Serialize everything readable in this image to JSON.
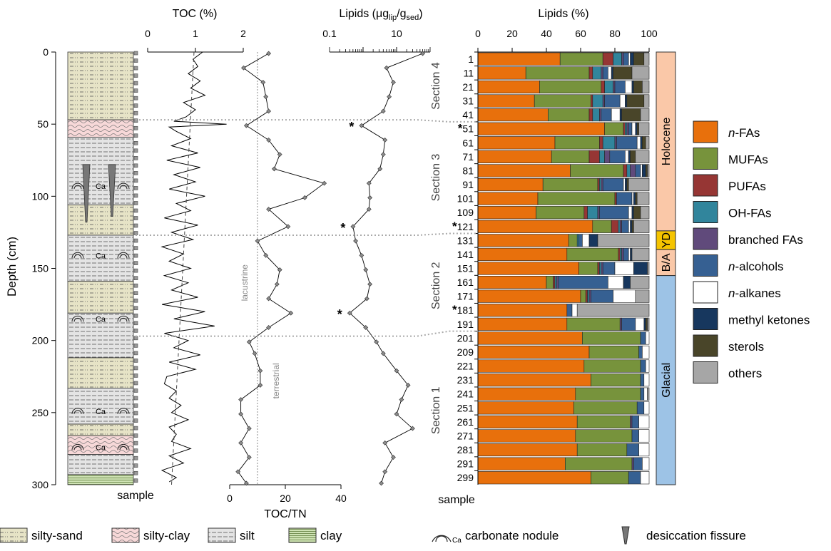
{
  "chart_data": {
    "type": "composite-stratigraphic-profile",
    "shared_y_axis": {
      "label": "Depth  (cm)",
      "range": [
        0,
        300
      ],
      "ticks": [
        0,
        50,
        100,
        150,
        200,
        250,
        300
      ],
      "inverted": true
    },
    "lithology_column": {
      "xlabel": "sample",
      "layers": [
        {
          "top": 0,
          "bottom": 47,
          "type": "silty-sand"
        },
        {
          "top": 47,
          "bottom": 59,
          "type": "silty-clay"
        },
        {
          "top": 59,
          "bottom": 106,
          "type": "silt"
        },
        {
          "top": 106,
          "bottom": 127,
          "type": "silty-sand"
        },
        {
          "top": 127,
          "bottom": 159,
          "type": "silt"
        },
        {
          "top": 159,
          "bottom": 181,
          "type": "silty-sand"
        },
        {
          "top": 181,
          "bottom": 212,
          "type": "silt"
        },
        {
          "top": 212,
          "bottom": 233,
          "type": "silty-sand"
        },
        {
          "top": 233,
          "bottom": 258,
          "type": "silt"
        },
        {
          "top": 258,
          "bottom": 266,
          "type": "silty-sand"
        },
        {
          "top": 266,
          "bottom": 279,
          "type": "silty-clay"
        },
        {
          "top": 279,
          "bottom": 293,
          "type": "silt"
        },
        {
          "top": 293,
          "bottom": 300,
          "type": "clay"
        }
      ],
      "carbonate_nodule_depths": [
        93,
        141,
        185,
        249,
        274
      ],
      "nodule_label": "Ca",
      "desiccation_fissures": [
        {
          "top": 78,
          "bottom": 118
        },
        {
          "top": 78,
          "bottom": 114
        }
      ]
    },
    "toc": {
      "title": "TOC (%)",
      "xlim": [
        0,
        2
      ],
      "ticks": [
        "0",
        "1",
        "2"
      ],
      "depth": [
        0,
        5,
        10,
        15,
        20,
        25,
        30,
        35,
        40,
        45,
        48,
        50,
        52,
        55,
        60,
        65,
        70,
        75,
        80,
        85,
        90,
        95,
        100,
        105,
        110,
        115,
        120,
        125,
        130,
        135,
        140,
        145,
        150,
        155,
        160,
        165,
        170,
        175,
        180,
        185,
        190,
        195,
        200,
        205,
        210,
        215,
        220,
        225,
        230,
        235,
        240,
        245,
        250,
        255,
        260,
        265,
        270,
        275,
        280,
        285,
        290,
        295,
        298
      ],
      "values": [
        1.15,
        0.95,
        1.05,
        0.85,
        1.1,
        0.9,
        1.2,
        0.75,
        1.0,
        0.8,
        0.55,
        1.65,
        0.45,
        0.6,
        0.9,
        0.5,
        1.05,
        0.4,
        1.1,
        0.55,
        1.0,
        0.45,
        1.2,
        0.6,
        0.9,
        0.35,
        1.05,
        0.5,
        0.95,
        0.3,
        0.75,
        0.45,
        0.9,
        0.35,
        0.85,
        0.5,
        1.05,
        0.3,
        1.2,
        0.55,
        1.4,
        0.35,
        0.85,
        0.55,
        1.1,
        0.45,
        1.0,
        0.4,
        0.35,
        0.6,
        0.45,
        0.7,
        0.5,
        0.85,
        0.45,
        0.6,
        0.5,
        0.9,
        0.45,
        0.75,
        0.3,
        0.6,
        0.45
      ],
      "trend_line": {
        "top": 0.97,
        "bottom": 0.5
      }
    },
    "toc_tn": {
      "xlabel": "TOC/TN",
      "xlim": [
        0,
        40
      ],
      "ticks": [
        "0",
        "20",
        "40"
      ],
      "threshold": 10,
      "threshold_labels": [
        "lacustrine",
        "terrestrial"
      ],
      "depth": [
        1,
        11,
        21,
        31,
        41,
        51,
        61,
        71,
        81,
        91,
        101,
        109,
        121,
        131,
        141,
        151,
        161,
        171,
        181,
        191,
        201,
        209,
        221,
        231,
        241,
        251,
        261,
        271,
        281,
        291,
        299
      ],
      "values": [
        14,
        5,
        12,
        13,
        14,
        6,
        14,
        18,
        16,
        34,
        27,
        14,
        21,
        10,
        13,
        18,
        17,
        14,
        22,
        14,
        7,
        9,
        11,
        11,
        4,
        4,
        7,
        4,
        7,
        3,
        6
      ]
    },
    "lipids_abs": {
      "title": "Lipids (μglip/gsed)",
      "scale": "log",
      "xlim": [
        0.1,
        100
      ],
      "ticks": [
        "0.1",
        "10"
      ],
      "depth": [
        1,
        11,
        21,
        31,
        41,
        51,
        61,
        71,
        81,
        91,
        101,
        109,
        121,
        131,
        141,
        151,
        161,
        171,
        181,
        191,
        201,
        209,
        221,
        231,
        241,
        251,
        261,
        271,
        281,
        291,
        299
      ],
      "values": [
        60,
        5,
        8,
        6,
        4,
        0.9,
        4.5,
        4,
        3.2,
        1.5,
        1.6,
        1.5,
        0.5,
        0.6,
        0.9,
        1.2,
        1.6,
        1.3,
        0.4,
        1.2,
        2.5,
        4,
        10,
        22,
        14,
        10,
        30,
        4.5,
        8,
        4.5,
        3.5
      ],
      "asterisk_samples": [
        51,
        121,
        181
      ]
    },
    "lipids_pct": {
      "title": "Lipids (%)",
      "type": "stacked-bar",
      "xlim": [
        0,
        100
      ],
      "ticks": [
        "0",
        "20",
        "40",
        "60",
        "80",
        "100"
      ],
      "xlabel": "sample",
      "samples": [
        "1",
        "11",
        "21",
        "31",
        "41",
        "*51",
        "61",
        "71",
        "81",
        "91",
        "101",
        "109",
        "*121",
        "131",
        "141",
        "151",
        "161",
        "171",
        "*181",
        "191",
        "201",
        "209",
        "221",
        "231",
        "241",
        "251",
        "261",
        "271",
        "281",
        "291",
        "299"
      ],
      "components": [
        {
          "name": "n-FAs",
          "color": "#e8700c"
        },
        {
          "name": "MUFAs",
          "color": "#77933c"
        },
        {
          "name": "PUFAs",
          "color": "#963634"
        },
        {
          "name": "OH-FAs",
          "color": "#31859c"
        },
        {
          "name": "branched FAs",
          "color": "#604a7b"
        },
        {
          "name": "n-alcohols",
          "color": "#366092"
        },
        {
          "name": "n-alkanes",
          "color": "#ffffff"
        },
        {
          "name": "methyl ketones",
          "color": "#17375e"
        },
        {
          "name": "sterols",
          "color": "#494529"
        },
        {
          "name": "others",
          "color": "#a6a6a6"
        }
      ],
      "values": [
        [
          48,
          25,
          6,
          5,
          1,
          3,
          1,
          2,
          6,
          3
        ],
        [
          28,
          37,
          2,
          5,
          1,
          3,
          2,
          1,
          11,
          10
        ],
        [
          36,
          36,
          2,
          5,
          1,
          6,
          4,
          1,
          5,
          4
        ],
        [
          33,
          33,
          1,
          6,
          1,
          9,
          3,
          1,
          10,
          3
        ],
        [
          41,
          24,
          2,
          4,
          1,
          6,
          5,
          1,
          11,
          5
        ],
        [
          74,
          11,
          1,
          1,
          1,
          2,
          2,
          1,
          1,
          6
        ],
        [
          45,
          26,
          2,
          7,
          1,
          12,
          2,
          1,
          2,
          2
        ],
        [
          43,
          22,
          6,
          3,
          3,
          9,
          2,
          1,
          3,
          8
        ],
        [
          54,
          31,
          2,
          2,
          3,
          3,
          1,
          2,
          1,
          1
        ],
        [
          38,
          32,
          1,
          1,
          1,
          12,
          1,
          1,
          1,
          12
        ],
        [
          35,
          45,
          1,
          0,
          0,
          9,
          1,
          1,
          1,
          7
        ],
        [
          34,
          28,
          2,
          6,
          1,
          17,
          2,
          1,
          4,
          5
        ],
        [
          67,
          11,
          4,
          1,
          1,
          4,
          1,
          1,
          1,
          9
        ],
        [
          53,
          5,
          0,
          1,
          0,
          2,
          4,
          5,
          0,
          30
        ],
        [
          52,
          30,
          1,
          1,
          1,
          3,
          1,
          1,
          0,
          10
        ],
        [
          59,
          11,
          1,
          1,
          1,
          7,
          11,
          8,
          0,
          1
        ],
        [
          40,
          4,
          1,
          1,
          1,
          29,
          9,
          4,
          0,
          11
        ],
        [
          60,
          3,
          1,
          1,
          1,
          13,
          13,
          0,
          0,
          8
        ],
        [
          52,
          0,
          0,
          0,
          0,
          3,
          3,
          0,
          0,
          42
        ],
        [
          52,
          31,
          0,
          0,
          1,
          8,
          5,
          1,
          1,
          1
        ],
        [
          61,
          34,
          0,
          0,
          0,
          3,
          2,
          0,
          0,
          0
        ],
        [
          65,
          29,
          0,
          0,
          0,
          2,
          4,
          0,
          0,
          0
        ],
        [
          62,
          33,
          0,
          0,
          0,
          3,
          2,
          0,
          0,
          0
        ],
        [
          66,
          29,
          0,
          0,
          0,
          2,
          3,
          0,
          0,
          0
        ],
        [
          57,
          38,
          0,
          0,
          0,
          2,
          2,
          0,
          0,
          1
        ],
        [
          56,
          37,
          0,
          0,
          0,
          4,
          3,
          0,
          0,
          0
        ],
        [
          58,
          31,
          0,
          0,
          1,
          4,
          6,
          0,
          0,
          0
        ],
        [
          57,
          33,
          0,
          0,
          0,
          4,
          6,
          0,
          0,
          0
        ],
        [
          58,
          29,
          0,
          0,
          0,
          7,
          6,
          0,
          0,
          0
        ],
        [
          51,
          39,
          0,
          0,
          1,
          5,
          4,
          0,
          0,
          0
        ],
        [
          66,
          22,
          0,
          0,
          0,
          7,
          5,
          0,
          0,
          0
        ]
      ],
      "section_labels": [
        {
          "label": "Section 4",
          "top": 0,
          "bottom": 47
        },
        {
          "label": "Section 3",
          "top": 47,
          "bottom": 127
        },
        {
          "label": "Section 2",
          "top": 127,
          "bottom": 197
        },
        {
          "label": "Section 1",
          "top": 197,
          "bottom": 300
        }
      ],
      "section_boundaries": [
        47,
        127,
        197
      ]
    },
    "periods": [
      {
        "name": "Holocene",
        "top": 0,
        "bottom": 124,
        "color": "#fac8a8"
      },
      {
        "name": "YD",
        "top": 124,
        "bottom": 137,
        "color": "#f5c400"
      },
      {
        "name": "B/A",
        "top": 137,
        "bottom": 155,
        "color": "#fac8a8"
      },
      {
        "name": "Glacial",
        "top": 155,
        "bottom": 300,
        "color": "#9dc3e6"
      }
    ],
    "legend_placement": "right",
    "bottom_legend": [
      {
        "key": "silty-sand",
        "label": "silty-sand"
      },
      {
        "key": "silty-clay",
        "label": "silty-clay"
      },
      {
        "key": "silt",
        "label": "silt"
      },
      {
        "key": "clay",
        "label": "clay"
      },
      {
        "key": "nodule",
        "label": "carbonate nodule"
      },
      {
        "key": "fissure",
        "label": "desiccation fissure"
      }
    ]
  }
}
